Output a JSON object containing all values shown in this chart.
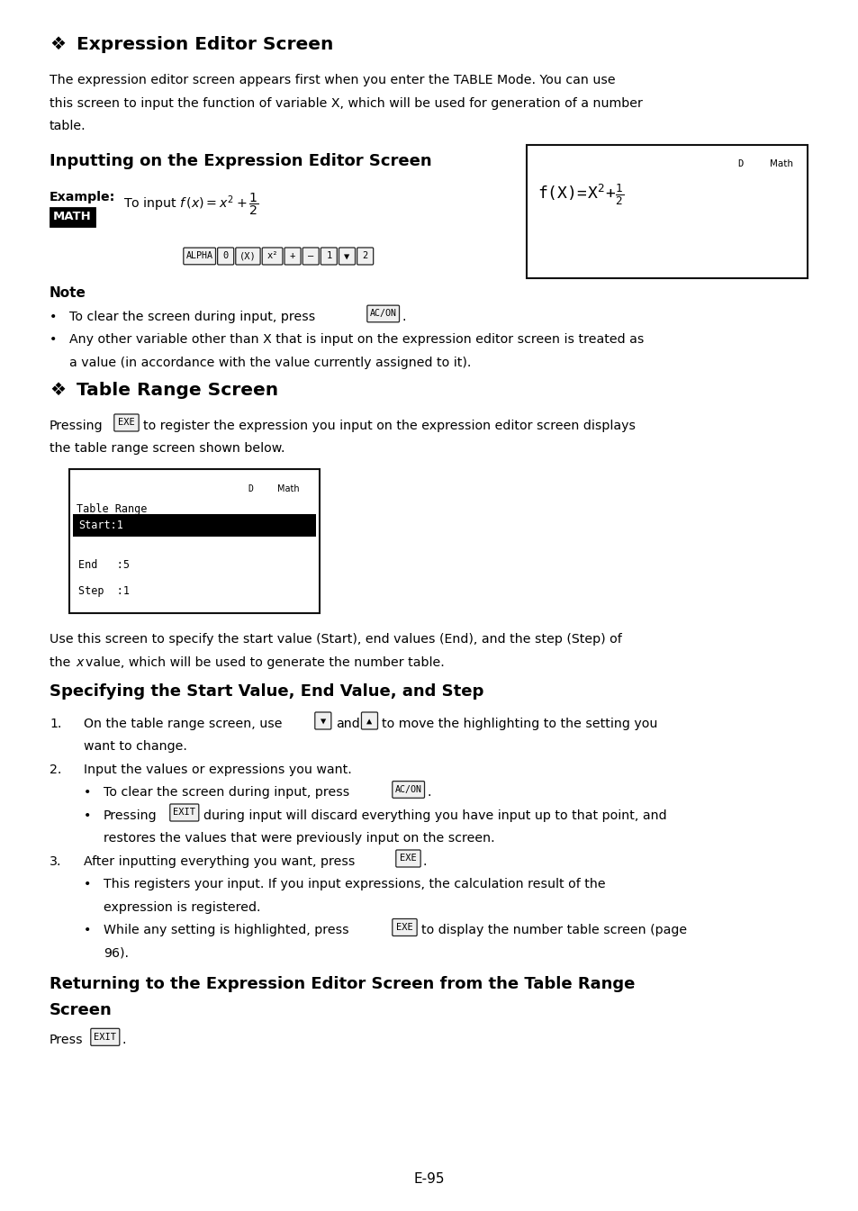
{
  "background_color": "#ffffff",
  "page_number": "E-95",
  "fig_w": 9.54,
  "fig_h": 13.45,
  "dpi": 100,
  "ml": 0.55,
  "mr": 0.55,
  "body_fontsize": 10.2,
  "body_linespacing": 1.55,
  "section1_title": "Expression Editor Screen",
  "section1_para": "The expression editor screen appears first when you enter the TABLE Mode. You can use this screen to input the function of variable X, which will be used for generation of a number table.",
  "section2_title": "Inputting on the Expression Editor Screen",
  "section3_title": "Table Range Screen",
  "section3_para1": "Pressing",
  "section3_para2": "to register the expression you input on the expression editor screen displays the table range screen shown below.",
  "section3_para3": "Use this screen to specify the start value (Start), end values (End), and the step (Step) of the",
  "section3_para4": "value, which will be used to generate the number table.",
  "section4_title": "Specifying the Start Value, End Value, and Step",
  "section5_title": "Returning to the Expression Editor Screen from the Table Range Screen",
  "note_title": "Note"
}
